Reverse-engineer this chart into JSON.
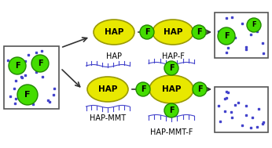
{
  "bg_color": "#ffffff",
  "hap_color": "#e8e800",
  "hap_outline": "#999900",
  "f_color": "#44dd00",
  "f_outline": "#228800",
  "arrow_color": "#333333",
  "mmt_color": "#4444cc",
  "box_color": "#555555",
  "dot_color": "#4444cc",
  "text_color": "#000000",
  "label_hap": "HAP",
  "label_hapf": "HAP-F",
  "label_hapmmt": "HAP-MMT",
  "label_hapmmtf": "HAP-MMT-F",
  "label_f": "F"
}
